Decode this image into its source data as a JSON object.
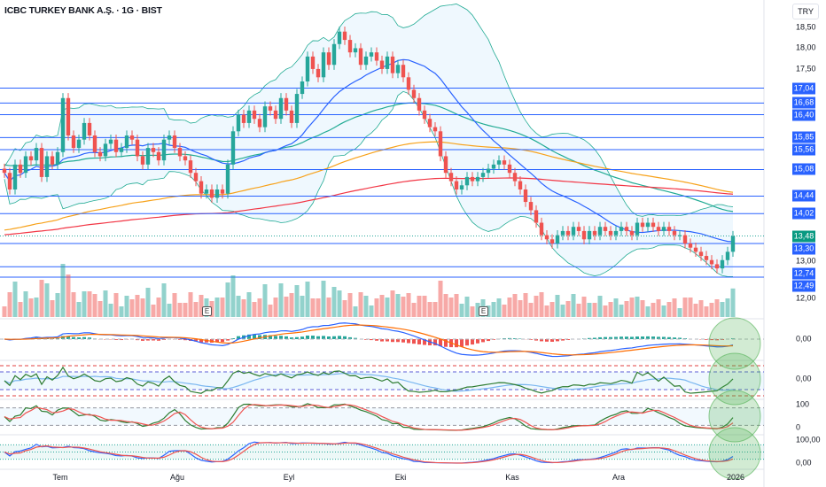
{
  "header": {
    "title": "ICBC TURKEY BANK A.Ş. · 1G · BIST",
    "currency": "TRY"
  },
  "price_axis": {
    "ticks": [
      {
        "v": 18.5,
        "t": "18,50"
      },
      {
        "v": 18.0,
        "t": "18,00"
      },
      {
        "v": 17.5,
        "t": "17,50"
      },
      {
        "v": 13.0,
        "t": "13,00"
      },
      {
        "v": 12.0,
        "t": "12,00"
      }
    ]
  },
  "levels": [
    {
      "v": 17.04,
      "t": "17,04"
    },
    {
      "v": 16.68,
      "t": "16,68"
    },
    {
      "v": 16.4,
      "t": "16,40"
    },
    {
      "v": 15.85,
      "t": "15,85"
    },
    {
      "v": 15.56,
      "t": "15,56"
    },
    {
      "v": 15.08,
      "t": "15,08"
    },
    {
      "v": 14.44,
      "t": "14,44"
    },
    {
      "v": 14.02,
      "t": "14,02"
    },
    {
      "v": 13.3,
      "t": "13,30"
    },
    {
      "v": 12.74,
      "t": "12,74"
    },
    {
      "v": 12.49,
      "t": "12,49"
    }
  ],
  "last_price": {
    "v": 13.48,
    "t": "13,48"
  },
  "pane_labels": {
    "macd_zero": "0,00",
    "cci_zero": "0,00",
    "stoch_hi": "100",
    "stoch_lo": "0",
    "srsi_hi": "100,00",
    "srsi_lo": "0,00"
  },
  "time_axis": [
    {
      "i": 11,
      "t": "Tem"
    },
    {
      "i": 33,
      "t": "Ağu"
    },
    {
      "i": 54,
      "t": "Eyl"
    },
    {
      "i": 75,
      "t": "Eki"
    },
    {
      "i": 96,
      "t": "Kas"
    },
    {
      "i": 116,
      "t": "Ara"
    },
    {
      "i": 138,
      "t": "2026"
    }
  ],
  "earnings": [
    {
      "i": 38,
      "t": "E"
    },
    {
      "i": 90,
      "t": "E"
    }
  ],
  "colors": {
    "up": "#26a69a",
    "down": "#ef5350",
    "level": "#2962ff",
    "ma20": "#2962ff",
    "ma50": "#22ab94",
    "ma100": "#f7a21b",
    "ma200": "#f23645"
  },
  "chart_data": {
    "type": "candlestick",
    "closes": [
      15.0,
      14.6,
      15.2,
      15.0,
      15.4,
      15.3,
      15.6,
      14.9,
      15.4,
      15.2,
      15.5,
      16.8,
      15.9,
      15.6,
      15.8,
      16.2,
      15.9,
      15.5,
      15.4,
      15.7,
      15.8,
      15.5,
      15.6,
      15.9,
      15.8,
      15.4,
      15.2,
      15.6,
      15.5,
      15.3,
      15.8,
      15.9,
      15.6,
      15.4,
      15.3,
      15.0,
      14.8,
      14.5,
      14.6,
      14.4,
      14.6,
      14.5,
      15.2,
      16.0,
      16.4,
      16.2,
      16.5,
      16.3,
      16.1,
      16.6,
      16.5,
      16.3,
      16.8,
      16.5,
      16.2,
      16.9,
      17.2,
      17.8,
      17.5,
      17.3,
      17.9,
      17.6,
      18.1,
      18.4,
      18.2,
      17.9,
      18.0,
      17.6,
      17.8,
      17.9,
      17.7,
      17.5,
      17.8,
      17.4,
      17.6,
      17.3,
      17.0,
      16.8,
      16.5,
      16.3,
      16.1,
      16.0,
      15.4,
      15.0,
      14.8,
      14.6,
      14.7,
      14.9,
      14.8,
      14.9,
      15.0,
      15.1,
      15.2,
      15.3,
      15.2,
      15.0,
      14.8,
      14.6,
      14.3,
      14.1,
      13.8,
      13.5,
      13.4,
      13.3,
      13.5,
      13.6,
      13.5,
      13.7,
      13.6,
      13.4,
      13.6,
      13.5,
      13.7,
      13.6,
      13.5,
      13.6,
      13.7,
      13.6,
      13.5,
      13.8,
      13.7,
      13.8,
      13.7,
      13.6,
      13.7,
      13.6,
      13.5,
      13.5,
      13.3,
      13.2,
      13.1,
      13.0,
      12.9,
      12.8,
      12.7,
      12.9,
      13.1,
      13.48
    ],
    "ylim": [
      12.0,
      18.5
    ],
    "ma_seeds": {
      "ma100": 13.6,
      "ma200": 13.5
    }
  }
}
